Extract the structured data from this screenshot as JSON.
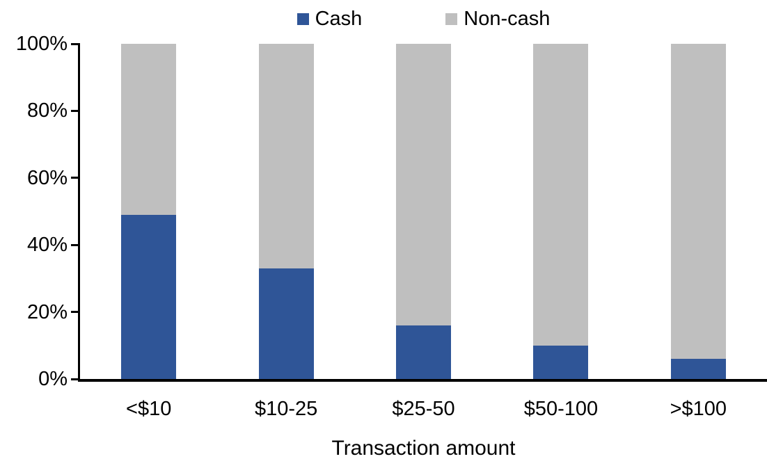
{
  "chart_data": {
    "type": "bar",
    "stacked": true,
    "percent_stacked": true,
    "title": "",
    "xlabel": "Transaction amount",
    "ylabel": "",
    "categories": [
      "<$10",
      "$10-25",
      "$25-50",
      "$50-100",
      ">$100"
    ],
    "series": [
      {
        "name": "Cash",
        "color": "#2F5597",
        "values": [
          49,
          33,
          16,
          10,
          6
        ]
      },
      {
        "name": "Non-cash",
        "color": "#BFBFBF",
        "values": [
          51,
          67,
          84,
          90,
          94
        ]
      }
    ],
    "ylim": [
      0,
      100
    ],
    "yticks": [
      {
        "label": "0%",
        "value": 0
      },
      {
        "label": "20%",
        "value": 20
      },
      {
        "label": "40%",
        "value": 40
      },
      {
        "label": "60%",
        "value": 60
      },
      {
        "label": "80%",
        "value": 80
      },
      {
        "label": "100%",
        "value": 100
      }
    ],
    "legend_position": "top",
    "grid": false,
    "axis_color": "#000000"
  }
}
